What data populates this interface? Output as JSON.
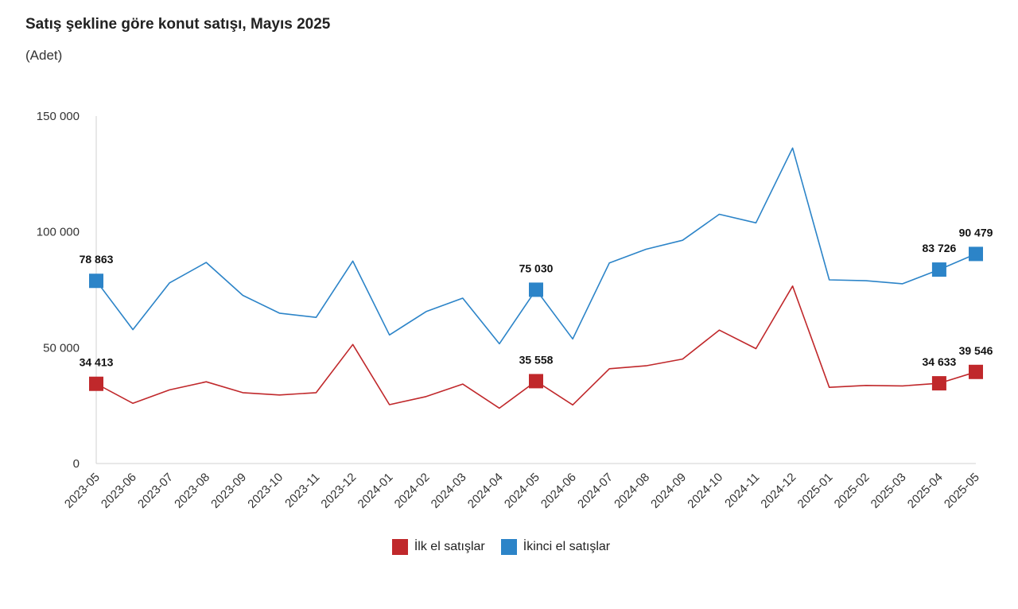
{
  "chart_data": {
    "type": "line",
    "title": "Satış şekline göre konut satışı, Mayıs 2025",
    "subtitle": "(Adet)",
    "xlabel": "",
    "ylabel": "",
    "ylim": [
      0,
      150000
    ],
    "yticks": [
      0,
      50000,
      100000,
      150000
    ],
    "ytick_labels": [
      "0",
      "50 000",
      "100 000",
      "150 000"
    ],
    "categories": [
      "2023-05",
      "2023-06",
      "2023-07",
      "2023-08",
      "2023-09",
      "2023-10",
      "2023-11",
      "2023-12",
      "2024-01",
      "2024-02",
      "2024-03",
      "2024-04",
      "2024-05",
      "2024-06",
      "2024-07",
      "2024-08",
      "2024-09",
      "2024-10",
      "2024-11",
      "2024-12",
      "2025-01",
      "2025-02",
      "2025-03",
      "2025-04",
      "2025-05"
    ],
    "series": [
      {
        "name": "İlk el satışlar",
        "color": "#c0282b",
        "values": [
          34413,
          26000,
          31800,
          35300,
          30600,
          29600,
          30600,
          51400,
          25400,
          28900,
          34300,
          23900,
          35558,
          25300,
          40900,
          42200,
          45100,
          57600,
          49600,
          76600,
          32900,
          33700,
          33500,
          34633,
          39546
        ],
        "labels": {
          "0": "34 413",
          "12": "35 558",
          "23": "34 633",
          "24": "39 546"
        }
      },
      {
        "name": "İkinci el satışlar",
        "color": "#2c84c8",
        "values": [
          78863,
          57800,
          78000,
          86800,
          72600,
          64900,
          63100,
          87400,
          55500,
          65600,
          71400,
          51700,
          75030,
          53800,
          86600,
          92500,
          96400,
          107600,
          103900,
          136200,
          79300,
          78900,
          77600,
          83726,
          90479
        ],
        "labels": {
          "0": "78 863",
          "12": "75 030",
          "23": "83 726",
          "24": "90 479"
        }
      }
    ],
    "legend_position": "bottom-center"
  }
}
